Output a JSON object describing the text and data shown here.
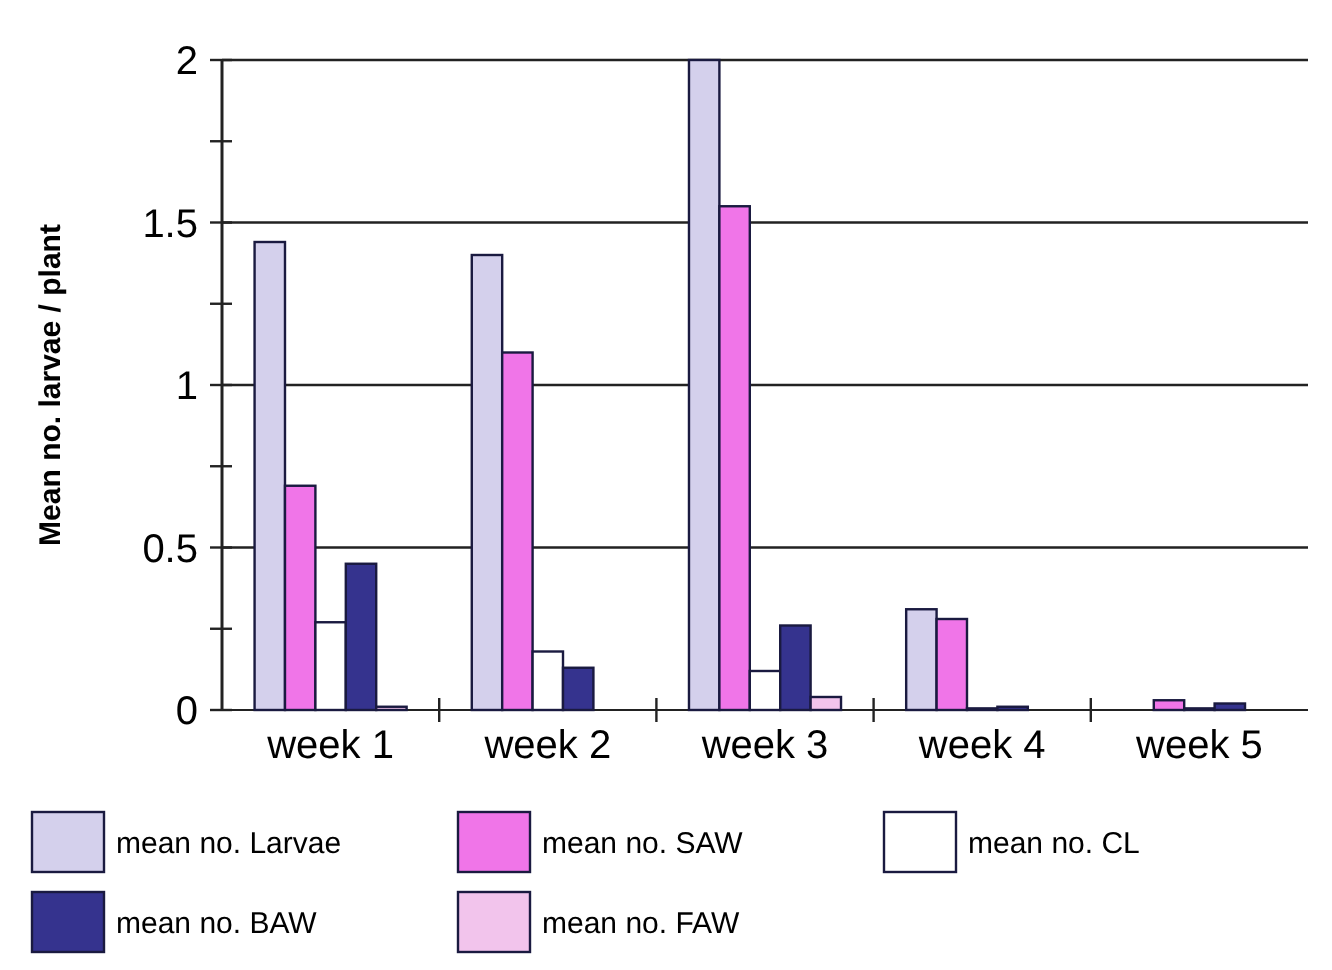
{
  "chart_data": {
    "type": "bar",
    "ylabel": "Mean no. larvae / plant",
    "categories": [
      "week 1",
      "week 2",
      "week 3",
      "week 4",
      "week 5"
    ],
    "series": [
      {
        "name": "mean no. Larvae",
        "color": "#d4d0ec",
        "values": [
          1.44,
          1.4,
          2.0,
          0.31,
          0
        ]
      },
      {
        "name": "mean no. SAW",
        "color": "#f075e8",
        "values": [
          0.69,
          1.1,
          1.55,
          0.28,
          0.03
        ]
      },
      {
        "name": "mean no. CL",
        "color": "#ffffff",
        "values": [
          0.27,
          0.18,
          0.12,
          0.005,
          0.005
        ]
      },
      {
        "name": "mean no. BAW",
        "color": "#35338e",
        "values": [
          0.45,
          0.13,
          0.26,
          0.01,
          0.02
        ]
      },
      {
        "name": "mean no. FAW",
        "color": "#f2c4ec",
        "values": [
          0.01,
          0,
          0.04,
          0,
          0
        ]
      }
    ],
    "ylim": [
      0,
      2
    ],
    "yticks": [
      0,
      {
        "value": 0.25,
        "label": null
      },
      0.5,
      {
        "value": 0.75,
        "label": null
      },
      1,
      {
        "value": 1.25,
        "label": null
      },
      1.5,
      {
        "value": 1.75,
        "label": null
      },
      2
    ],
    "grid": "y",
    "legend": "bottom"
  }
}
